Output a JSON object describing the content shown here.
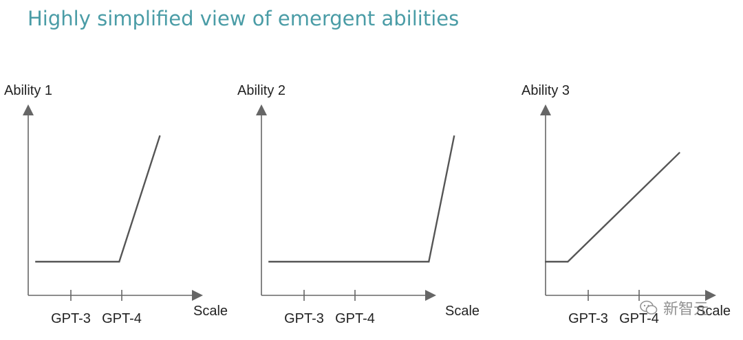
{
  "title": "Highly simplified view of emergent abilities",
  "chart_data": [
    {
      "type": "line",
      "ylabel": "Ability 1",
      "xlabel": "Scale",
      "tick_labels": [
        "GPT-3",
        "GPT-4"
      ],
      "tick_x": [
        1,
        2
      ],
      "xlim": [
        0,
        4.5
      ],
      "ylim": [
        0,
        10
      ],
      "x": [
        0.3,
        1.95,
        2.75
      ],
      "y": [
        2.0,
        2.0,
        9.5
      ],
      "grid": false
    },
    {
      "type": "line",
      "ylabel": "Ability 2",
      "xlabel": "Scale",
      "tick_labels": [
        "GPT-3",
        "GPT-4"
      ],
      "tick_x": [
        1,
        2
      ],
      "xlim": [
        0,
        4.5
      ],
      "ylim": [
        0,
        10
      ],
      "x": [
        0.3,
        3.45,
        3.95
      ],
      "y": [
        2.0,
        2.0,
        9.5
      ],
      "grid": false
    },
    {
      "type": "line",
      "ylabel": "Ability 3",
      "xlabel": "Scale",
      "tick_labels": [
        "GPT-3",
        "GPT-4"
      ],
      "tick_x": [
        1,
        2
      ],
      "xlim": [
        0,
        4.5
      ],
      "ylim": [
        0,
        10
      ],
      "x": [
        0.15,
        0.6,
        2.8
      ],
      "y": [
        2.0,
        2.0,
        8.5
      ],
      "grid": false
    }
  ],
  "watermark": "新智元"
}
